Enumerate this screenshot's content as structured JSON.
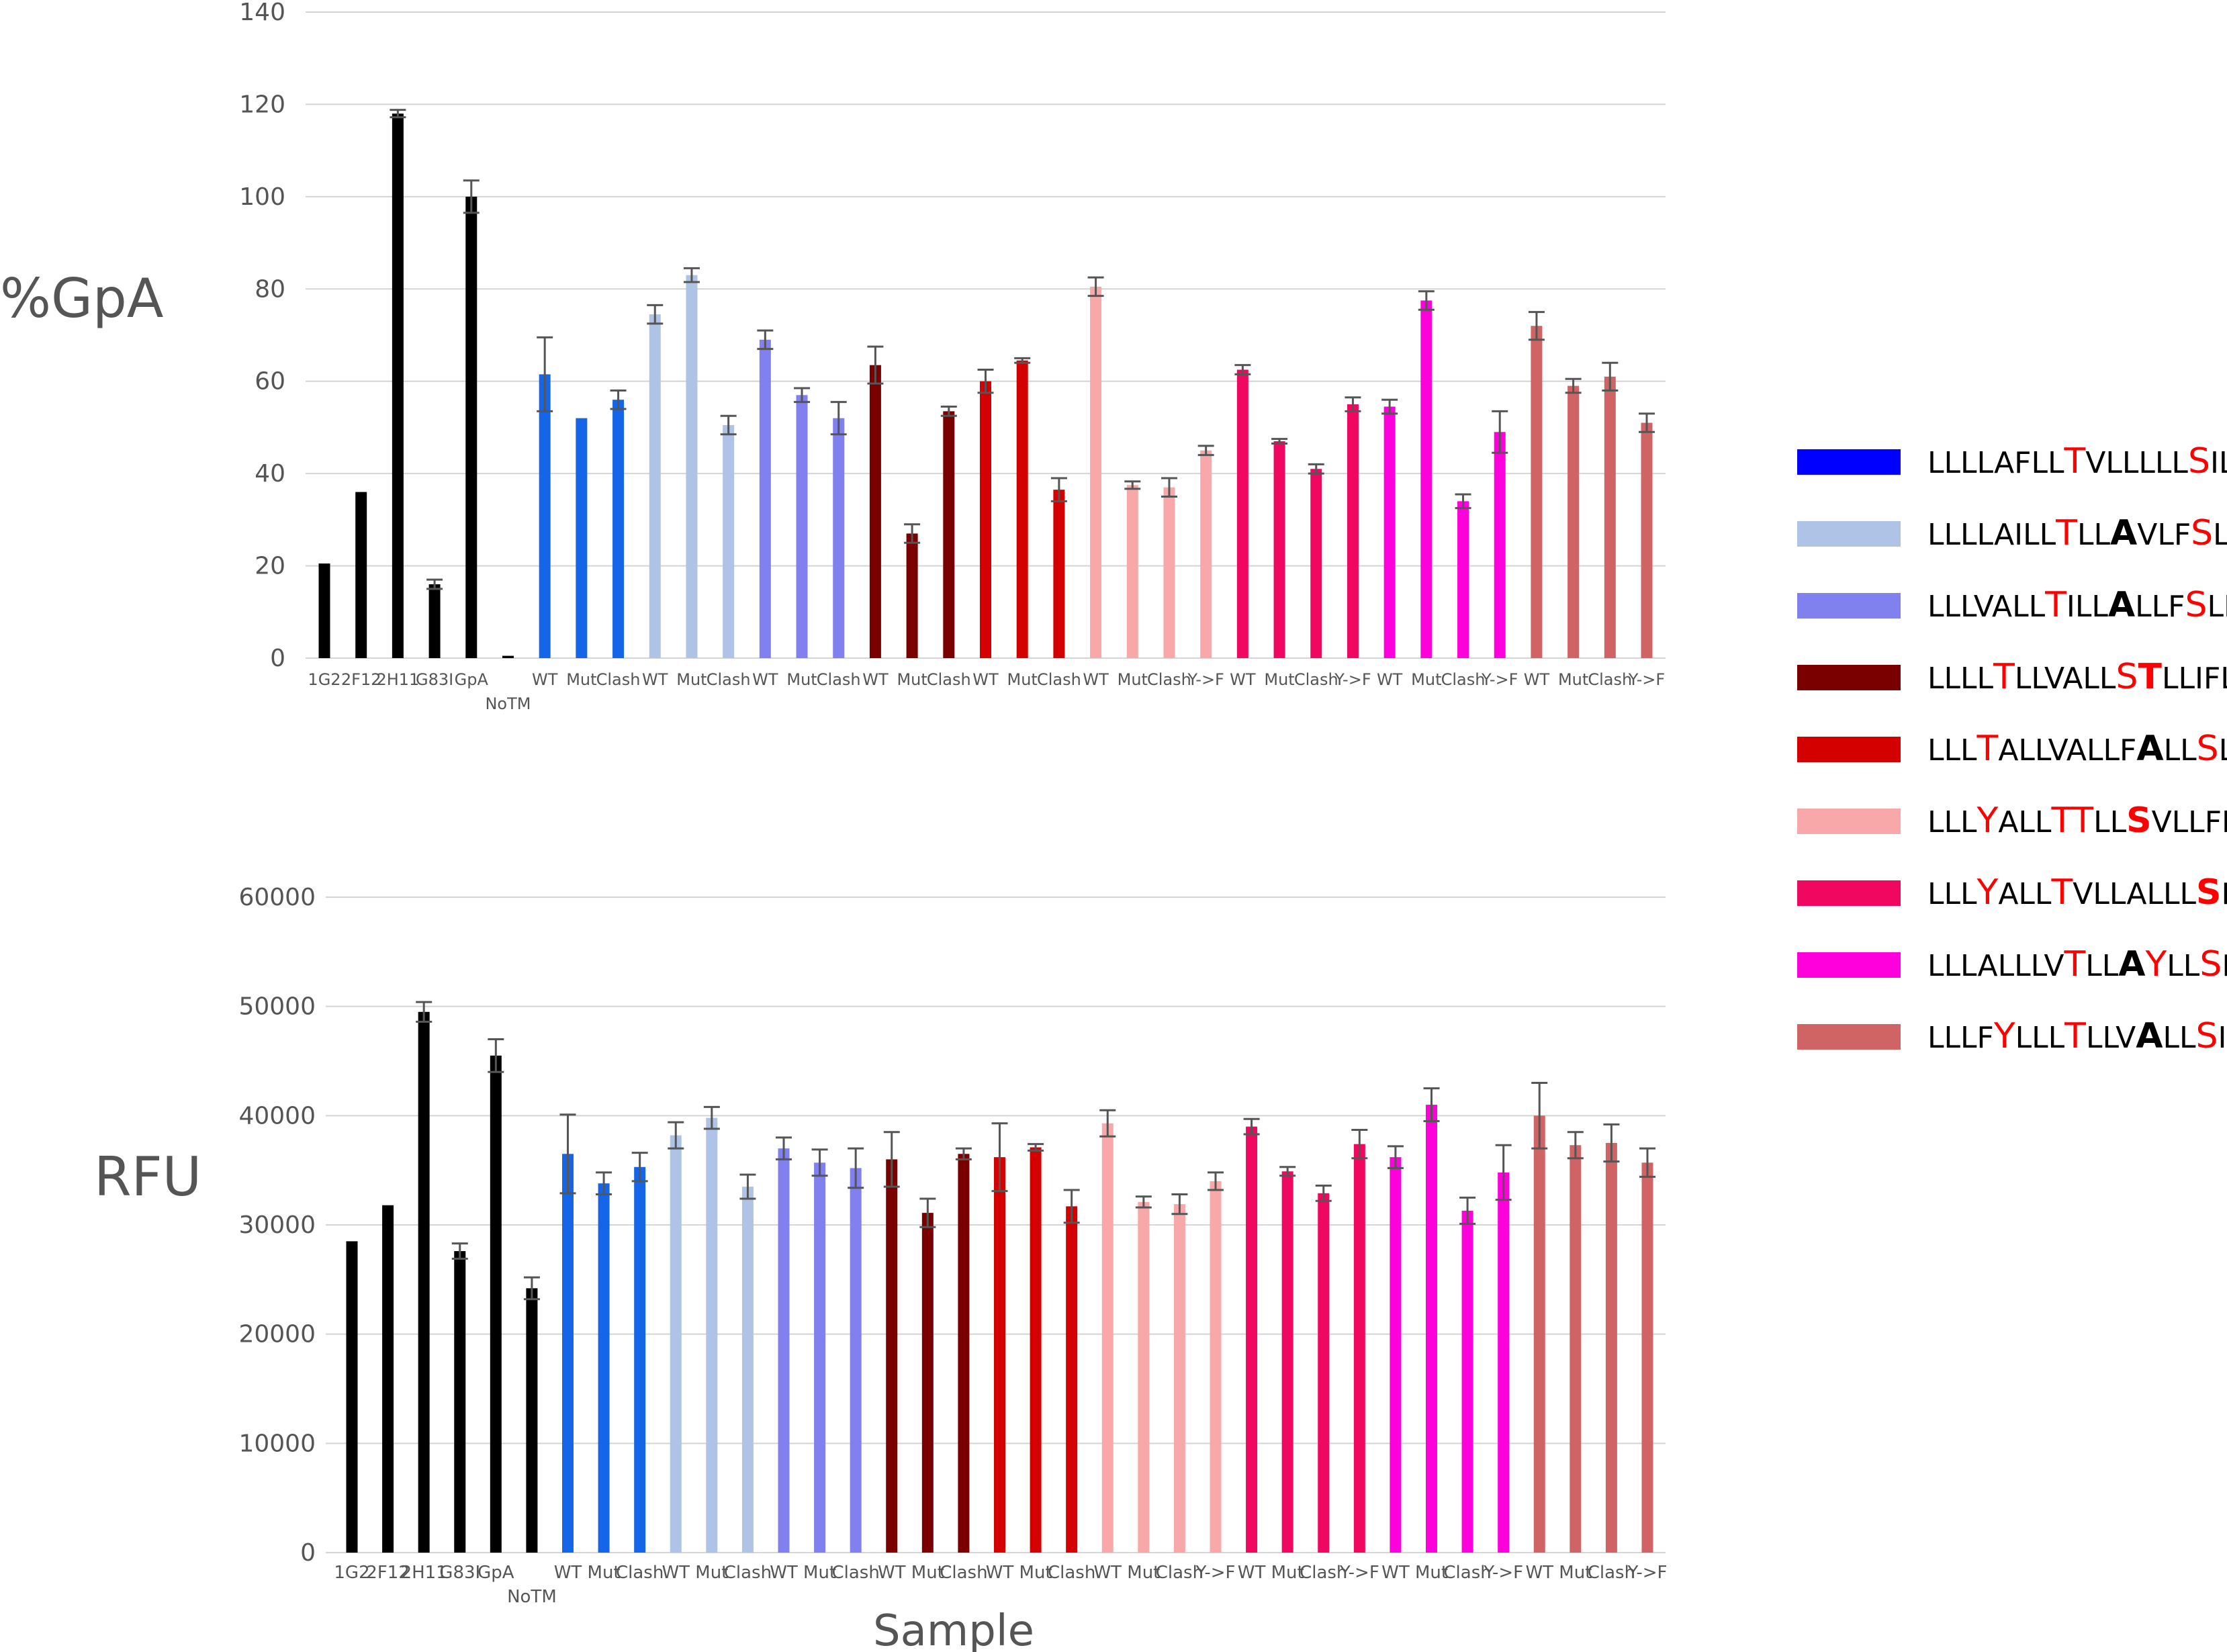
{
  "chart_data": [
    {
      "type": "bar",
      "ylabel": "%GpA",
      "xlabel": "",
      "ylim": [
        0,
        140
      ],
      "yticks": [
        "0",
        "20",
        "40",
        "60",
        "80",
        "100",
        "120",
        "140"
      ],
      "grid": true,
      "categories": [
        "1G2",
        "2F12",
        "2H11",
        "G83I",
        "GpA",
        "NoTM",
        "WT",
        "Mut",
        "Clash",
        "WT",
        "Mut",
        "Clash",
        "WT",
        "Mut",
        "Clash",
        "WT",
        "Mut",
        "Clash",
        "WT",
        "Mut",
        "Clash",
        "WT",
        "Mut",
        "Clash",
        "Y->F",
        "WT",
        "Mut",
        "Clash",
        "Y->F",
        "WT",
        "Mut",
        "Clash",
        "Y->F",
        "WT",
        "Mut",
        "Clash",
        "Y->F"
      ],
      "values": [
        20.5,
        36,
        118,
        16,
        100,
        0.5,
        61.5,
        52,
        56,
        74.5,
        83,
        50.5,
        69,
        57,
        52,
        63.5,
        27,
        53.5,
        60,
        64.5,
        36.5,
        80.5,
        37.5,
        37,
        45,
        62.5,
        47,
        41,
        55,
        54.5,
        77.5,
        34,
        49,
        72,
        59,
        61,
        51
      ],
      "errors": [
        0,
        0,
        0.8,
        1,
        3.5,
        0,
        8,
        0,
        2,
        2,
        1.5,
        2,
        2,
        1.5,
        3.5,
        4,
        2,
        1,
        2.5,
        0.5,
        2.5,
        2,
        0.8,
        2,
        1,
        1,
        0.5,
        1,
        1.5,
        1.5,
        2,
        1.5,
        4.5,
        3,
        1.5,
        3,
        2
      ]
    },
    {
      "type": "bar",
      "ylabel": "RFU",
      "xlabel": "Sample",
      "ylim": [
        0,
        60000
      ],
      "yticks": [
        "0",
        "10000",
        "20000",
        "30000",
        "40000",
        "50000",
        "60000"
      ],
      "grid": true,
      "categories": [
        "1G2",
        "2F12",
        "2H11",
        "G83I",
        "GpA",
        "NoTM",
        "WT",
        "Mut",
        "Clash",
        "WT",
        "Mut",
        "Clash",
        "WT",
        "Mut",
        "Clash",
        "WT",
        "Mut",
        "Clash",
        "WT",
        "Mut",
        "Clash",
        "WT",
        "Mut",
        "Clash",
        "Y->F",
        "WT",
        "Mut",
        "Clash",
        "Y->F",
        "WT",
        "Mut",
        "Clash",
        "Y->F",
        "WT",
        "Mut",
        "Clash",
        "Y->F"
      ],
      "values": [
        28500,
        31800,
        49500,
        27600,
        45500,
        24200,
        36500,
        33800,
        35300,
        38200,
        39800,
        33500,
        37000,
        35700,
        35200,
        36000,
        31100,
        36500,
        36200,
        37100,
        31700,
        39300,
        32100,
        31900,
        34000,
        39000,
        34900,
        32900,
        37400,
        36200,
        41000,
        31300,
        34800,
        40000,
        37300,
        37500,
        35700
      ],
      "errors": [
        0,
        0,
        900,
        700,
        1500,
        1000,
        3600,
        1000,
        1300,
        1200,
        1000,
        1100,
        1000,
        1200,
        1800,
        2500,
        1300,
        500,
        3100,
        300,
        1500,
        1200,
        500,
        900,
        800,
        700,
        400,
        700,
        1300,
        1000,
        1500,
        1200,
        2500,
        3000,
        1200,
        1700,
        1300
      ]
    }
  ],
  "group_colors": [
    "#000000",
    "#1565e8",
    "#aec3e6",
    "#8080ee",
    "#7a0000",
    "#d40000",
    "#f8a8a8",
    "#f00860",
    "#ff00dc",
    "#d06464"
  ],
  "group_sizes": [
    6,
    3,
    3,
    3,
    3,
    3,
    4,
    4,
    4,
    4
  ],
  "legend": [
    {
      "color": "#0000ff",
      "seq": [
        [
          "LLLLAFLL",
          "n"
        ],
        [
          "T",
          "r"
        ],
        [
          "VLLLLL",
          "n"
        ],
        [
          "S",
          "r"
        ],
        [
          "IL",
          "n"
        ]
      ]
    },
    {
      "color": "#aec3e6",
      "seq": [
        [
          "LLLLAILL",
          "n"
        ],
        [
          "T",
          "r"
        ],
        [
          "LL",
          "n"
        ],
        [
          "A",
          "b"
        ],
        [
          "VLF",
          "n"
        ],
        [
          "S",
          "r"
        ],
        [
          "LL",
          "n"
        ]
      ]
    },
    {
      "color": "#8080ee",
      "seq": [
        [
          "LLLVALL",
          "n"
        ],
        [
          "T",
          "r"
        ],
        [
          "ILL",
          "n"
        ],
        [
          "A",
          "b"
        ],
        [
          "LLF",
          "n"
        ],
        [
          "S",
          "r"
        ],
        [
          "LL",
          "n"
        ]
      ]
    },
    {
      "color": "#7a0000",
      "seq": [
        [
          "LLLL",
          "n"
        ],
        [
          "T",
          "r"
        ],
        [
          "LLVALL",
          "n"
        ],
        [
          "S",
          "r"
        ],
        [
          "T",
          "rb"
        ],
        [
          "LLIFL",
          "n"
        ]
      ]
    },
    {
      "color": "#d40000",
      "seq": [
        [
          "LLL",
          "n"
        ],
        [
          "T",
          "r"
        ],
        [
          "ALLVALLF",
          "n"
        ],
        [
          "A",
          "b"
        ],
        [
          "LL",
          "n"
        ],
        [
          "S",
          "r"
        ],
        [
          "LL",
          "n"
        ]
      ]
    },
    {
      "color": "#f8a8a8",
      "seq": [
        [
          "LLL",
          "n"
        ],
        [
          "Y",
          "r"
        ],
        [
          "ALL",
          "n"
        ],
        [
          "TT",
          "r"
        ],
        [
          "LL",
          "n"
        ],
        [
          "S",
          "rb"
        ],
        [
          "VLLFLL",
          "n"
        ]
      ]
    },
    {
      "color": "#f00860",
      "seq": [
        [
          "LLL",
          "n"
        ],
        [
          "Y",
          "r"
        ],
        [
          "ALL",
          "n"
        ],
        [
          "T",
          "r"
        ],
        [
          "VLLALLL",
          "n"
        ],
        [
          "S",
          "rb"
        ],
        [
          "FL",
          "n"
        ]
      ]
    },
    {
      "color": "#ff00dc",
      "seq": [
        [
          "LLLALLLV",
          "n"
        ],
        [
          "T",
          "r"
        ],
        [
          "LL",
          "n"
        ],
        [
          "A",
          "b"
        ],
        [
          "Y",
          "r"
        ],
        [
          "LL",
          "n"
        ],
        [
          "S",
          "r"
        ],
        [
          "FL",
          "n"
        ]
      ]
    },
    {
      "color": "#d06464",
      "seq": [
        [
          "LLLF",
          "n"
        ],
        [
          "Y",
          "r"
        ],
        [
          "LLL",
          "n"
        ],
        [
          "T",
          "r"
        ],
        [
          "LLV",
          "n"
        ],
        [
          "A",
          "b"
        ],
        [
          "LL",
          "n"
        ],
        [
          "S",
          "r"
        ],
        [
          "IL",
          "n"
        ]
      ]
    }
  ]
}
